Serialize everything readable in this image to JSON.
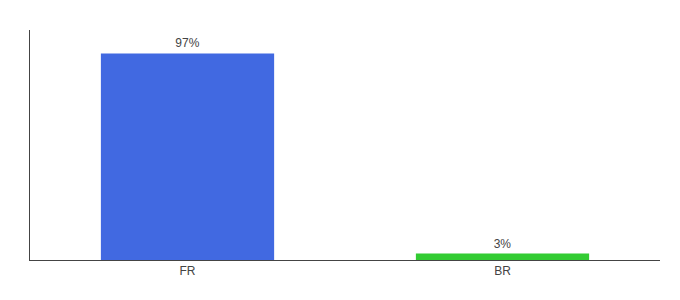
{
  "chart_data": {
    "type": "bar",
    "categories": [
      "FR",
      "BR"
    ],
    "values": [
      97,
      3
    ],
    "value_labels": [
      "97%",
      "3%"
    ],
    "data_labels": true,
    "colors": [
      "#4169E1",
      "#33CC33"
    ],
    "ylim": [
      0,
      108
    ],
    "tick_labels": "x",
    "grid": false
  }
}
